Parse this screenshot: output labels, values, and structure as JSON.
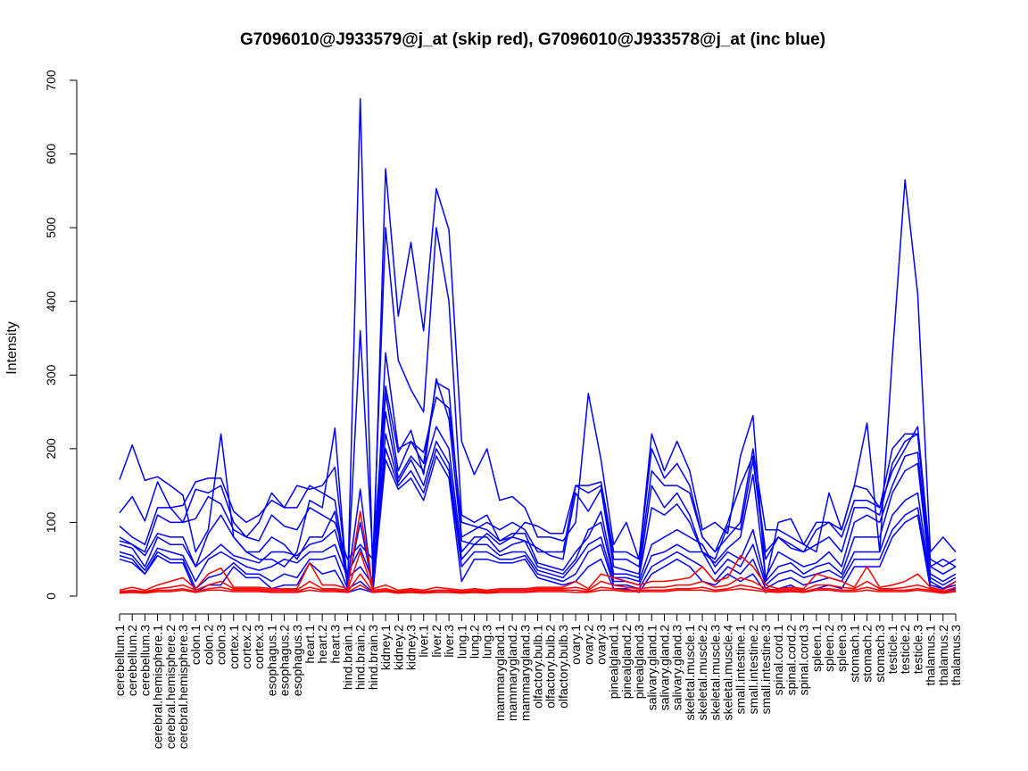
{
  "chart_data": {
    "type": "line",
    "title": "G7096010@J933579@j_at (skip red), G7096010@J933578@j_at (inc blue)",
    "ylabel": "Intensity",
    "xlabel": "",
    "ylim": [
      0,
      700
    ],
    "yticks": [
      0,
      100,
      200,
      300,
      400,
      500,
      600,
      700
    ],
    "grid": false,
    "legend": "none",
    "colors": {
      "blue": "#0000ff",
      "red": "#ff0000"
    },
    "categories": [
      "cerebellum.1",
      "cerebellum.2",
      "cerebellum.3",
      "cerebral.hemisphere.1",
      "cerebral.hemisphere.2",
      "cerebral.hemisphere.3",
      "colon.1",
      "colon.2",
      "colon.3",
      "cortex.1",
      "cortex.2",
      "cortex.3",
      "esophagus.1",
      "esophagus.2",
      "esophagus.3",
      "heart.1",
      "heart.2",
      "heart.3",
      "hind.brain.1",
      "hind.brain.2",
      "hind.brain.3",
      "kidney.1",
      "kidney.2",
      "kidney.3",
      "liver.1",
      "liver.2",
      "liver.3",
      "lung.1",
      "lung.2",
      "lung.3",
      "mammarygland.1",
      "mammarygland.2",
      "mammarygland.3",
      "olfactory.bulb.1",
      "olfactory.bulb.2",
      "olfactory.bulb.3",
      "ovary.1",
      "ovary.2",
      "ovary.3",
      "pinealgland.1",
      "pinealgland.2",
      "pinealgland.3",
      "salivary.gland.1",
      "salivary.gland.2",
      "salivary.gland.3",
      "skeletal.muscle.1",
      "skeletal.muscle.2",
      "skeletal.muscle.3",
      "skeletal.muscle.4",
      "small.intestine.1",
      "small.intestine.2",
      "small.intestine.3",
      "spinal.cord.1",
      "spinal.cord.2",
      "spinal.cord.3",
      "spleen.1",
      "spleen.2",
      "spleen.3",
      "stomach.1",
      "stomach.2",
      "stomach.3",
      "testicle.1",
      "testicle.2",
      "testicle.3",
      "thalamus.1",
      "thalamus.2",
      "thalamus.3"
    ],
    "series": [
      {
        "color": "blue",
        "values": [
          158,
          205,
          157,
          162,
          150,
          137,
          60,
          90,
          220,
          80,
          60,
          50,
          50,
          40,
          60,
          130,
          120,
          228,
          7,
          675,
          20,
          580,
          380,
          480,
          360,
          553,
          497,
          210,
          165,
          200,
          130,
          135,
          120,
          80,
          80,
          75,
          100,
          275,
          185,
          70,
          100,
          50,
          220,
          170,
          210,
          170,
          90,
          100,
          85,
          190,
          245,
          20,
          100,
          105,
          70,
          60,
          140,
          90,
          150,
          235,
          60,
          325,
          565,
          410,
          60,
          80,
          60
        ]
      },
      {
        "color": "blue",
        "values": [
          113,
          135,
          102,
          155,
          120,
          123,
          155,
          160,
          160,
          115,
          100,
          110,
          130,
          120,
          150,
          145,
          150,
          175,
          20,
          360,
          50,
          500,
          320,
          280,
          250,
          500,
          400,
          110,
          100,
          110,
          75,
          80,
          100,
          95,
          85,
          85,
          150,
          150,
          155,
          60,
          60,
          50,
          200,
          160,
          180,
          150,
          80,
          60,
          80,
          100,
          200,
          90,
          90,
          80,
          70,
          100,
          100,
          90,
          150,
          145,
          120,
          200,
          220,
          220,
          40,
          50,
          40
        ]
      },
      {
        "color": "blue",
        "values": [
          95,
          80,
          70,
          120,
          120,
          100,
          145,
          140,
          150,
          100,
          80,
          100,
          140,
          120,
          120,
          150,
          140,
          130,
          20,
          145,
          5,
          330,
          200,
          210,
          180,
          290,
          280,
          80,
          90,
          100,
          90,
          100,
          90,
          60,
          60,
          60,
          150,
          140,
          150,
          50,
          50,
          40,
          170,
          150,
          150,
          140,
          80,
          60,
          100,
          150,
          190,
          60,
          80,
          70,
          60,
          90,
          100,
          80,
          130,
          130,
          120,
          170,
          200,
          230,
          50,
          40,
          50
        ]
      },
      {
        "color": "blue",
        "values": [
          75,
          70,
          60,
          110,
          100,
          100,
          105,
          135,
          125,
          90,
          80,
          75,
          110,
          95,
          90,
          120,
          110,
          100,
          50,
          70,
          50,
          285,
          195,
          225,
          165,
          295,
          240,
          75,
          70,
          85,
          70,
          80,
          75,
          65,
          55,
          50,
          140,
          115,
          145,
          40,
          35,
          30,
          150,
          120,
          140,
          110,
          60,
          50,
          95,
          90,
          185,
          50,
          80,
          65,
          60,
          70,
          80,
          60,
          120,
          120,
          110,
          180,
          210,
          220,
          40,
          30,
          40
        ]
      },
      {
        "color": "blue",
        "values": [
          80,
          70,
          55,
          85,
          80,
          80,
          40,
          85,
          110,
          80,
          60,
          60,
          80,
          70,
          50,
          80,
          80,
          115,
          15,
          100,
          10,
          275,
          170,
          210,
          195,
          270,
          255,
          100,
          95,
          90,
          75,
          85,
          85,
          45,
          40,
          35,
          60,
          80,
          115,
          30,
          30,
          25,
          120,
          110,
          125,
          100,
          60,
          45,
          65,
          80,
          165,
          25,
          60,
          50,
          40,
          45,
          60,
          40,
          100,
          110,
          100,
          150,
          190,
          195,
          30,
          20,
          30
        ]
      },
      {
        "color": "blue",
        "values": [
          70,
          65,
          40,
          80,
          70,
          70,
          40,
          55,
          70,
          55,
          50,
          45,
          60,
          60,
          55,
          70,
          75,
          90,
          30,
          65,
          20,
          250,
          160,
          190,
          170,
          230,
          200,
          60,
          80,
          80,
          60,
          70,
          75,
          40,
          35,
          30,
          50,
          90,
          100,
          25,
          25,
          20,
          70,
          80,
          90,
          80,
          70,
          40,
          60,
          50,
          90,
          20,
          40,
          45,
          30,
          40,
          45,
          30,
          80,
          80,
          80,
          140,
          170,
          180,
          25,
          15,
          25
        ]
      },
      {
        "color": "blue",
        "values": [
          60,
          55,
          35,
          65,
          60,
          55,
          20,
          50,
          60,
          50,
          40,
          35,
          40,
          50,
          45,
          60,
          60,
          70,
          25,
          40,
          15,
          220,
          155,
          185,
          150,
          210,
          180,
          50,
          70,
          70,
          55,
          60,
          60,
          35,
          30,
          25,
          45,
          70,
          80,
          20,
          20,
          15,
          55,
          60,
          70,
          60,
          60,
          30,
          50,
          40,
          70,
          15,
          30,
          35,
          25,
          30,
          35,
          25,
          60,
          60,
          60,
          110,
          130,
          140,
          20,
          10,
          20
        ]
      },
      {
        "color": "blue",
        "values": [
          55,
          50,
          30,
          60,
          50,
          50,
          10,
          25,
          30,
          45,
          30,
          30,
          20,
          30,
          25,
          50,
          50,
          55,
          10,
          20,
          5,
          200,
          150,
          170,
          140,
          200,
          170,
          40,
          60,
          60,
          50,
          50,
          55,
          30,
          25,
          20,
          30,
          60,
          70,
          15,
          15,
          10,
          40,
          50,
          60,
          50,
          40,
          20,
          40,
          30,
          50,
          10,
          20,
          25,
          15,
          20,
          25,
          20,
          50,
          50,
          50,
          90,
          110,
          120,
          15,
          10,
          15
        ]
      },
      {
        "color": "blue",
        "values": [
          50,
          45,
          30,
          55,
          45,
          45,
          5,
          15,
          15,
          40,
          25,
          25,
          10,
          15,
          15,
          45,
          30,
          35,
          5,
          10,
          5,
          185,
          145,
          160,
          130,
          190,
          160,
          20,
          50,
          50,
          45,
          45,
          50,
          25,
          20,
          15,
          20,
          40,
          50,
          10,
          10,
          5,
          30,
          40,
          50,
          40,
          20,
          15,
          30,
          20,
          30,
          5,
          10,
          15,
          5,
          10,
          15,
          10,
          40,
          40,
          40,
          80,
          100,
          110,
          10,
          5,
          10
        ]
      },
      {
        "color": "red",
        "values": [
          8,
          12,
          8,
          15,
          20,
          25,
          10,
          30,
          38,
          12,
          12,
          12,
          10,
          10,
          10,
          45,
          15,
          15,
          10,
          115,
          10,
          15,
          8,
          10,
          8,
          12,
          10,
          8,
          10,
          8,
          10,
          10,
          10,
          12,
          12,
          12,
          20,
          10,
          30,
          25,
          20,
          15,
          20,
          20,
          22,
          25,
          40,
          20,
          25,
          55,
          40,
          15,
          10,
          12,
          10,
          30,
          25,
          20,
          12,
          40,
          12,
          15,
          20,
          30,
          12,
          8,
          20
        ]
      },
      {
        "color": "red",
        "values": [
          6,
          8,
          6,
          10,
          12,
          15,
          8,
          15,
          20,
          10,
          10,
          10,
          8,
          8,
          8,
          20,
          10,
          10,
          8,
          60,
          8,
          10,
          6,
          8,
          6,
          8,
          8,
          6,
          8,
          6,
          8,
          8,
          8,
          10,
          10,
          10,
          12,
          8,
          20,
          15,
          12,
          10,
          12,
          12,
          15,
          15,
          20,
          12,
          15,
          25,
          20,
          10,
          8,
          10,
          8,
          15,
          15,
          12,
          10,
          20,
          10,
          10,
          12,
          15,
          10,
          6,
          12
        ]
      },
      {
        "color": "red",
        "values": [
          5,
          6,
          5,
          8,
          8,
          10,
          6,
          10,
          12,
          8,
          8,
          8,
          6,
          6,
          6,
          12,
          8,
          8,
          6,
          30,
          6,
          8,
          5,
          6,
          5,
          6,
          6,
          5,
          6,
          5,
          6,
          6,
          6,
          8,
          8,
          8,
          8,
          6,
          12,
          10,
          8,
          8,
          8,
          8,
          10,
          10,
          12,
          8,
          10,
          15,
          12,
          8,
          6,
          8,
          6,
          10,
          10,
          8,
          8,
          12,
          8,
          8,
          8,
          10,
          8,
          5,
          8
        ]
      },
      {
        "color": "red",
        "values": [
          4,
          5,
          4,
          6,
          6,
          8,
          5,
          8,
          8,
          6,
          6,
          6,
          5,
          5,
          5,
          8,
          6,
          6,
          5,
          15,
          5,
          6,
          4,
          5,
          4,
          5,
          5,
          4,
          5,
          4,
          5,
          5,
          5,
          6,
          6,
          6,
          5,
          5,
          8,
          8,
          6,
          6,
          6,
          6,
          8,
          8,
          8,
          6,
          8,
          10,
          8,
          6,
          5,
          6,
          5,
          8,
          8,
          6,
          6,
          8,
          6,
          6,
          6,
          8,
          6,
          4,
          6
        ]
      }
    ]
  }
}
